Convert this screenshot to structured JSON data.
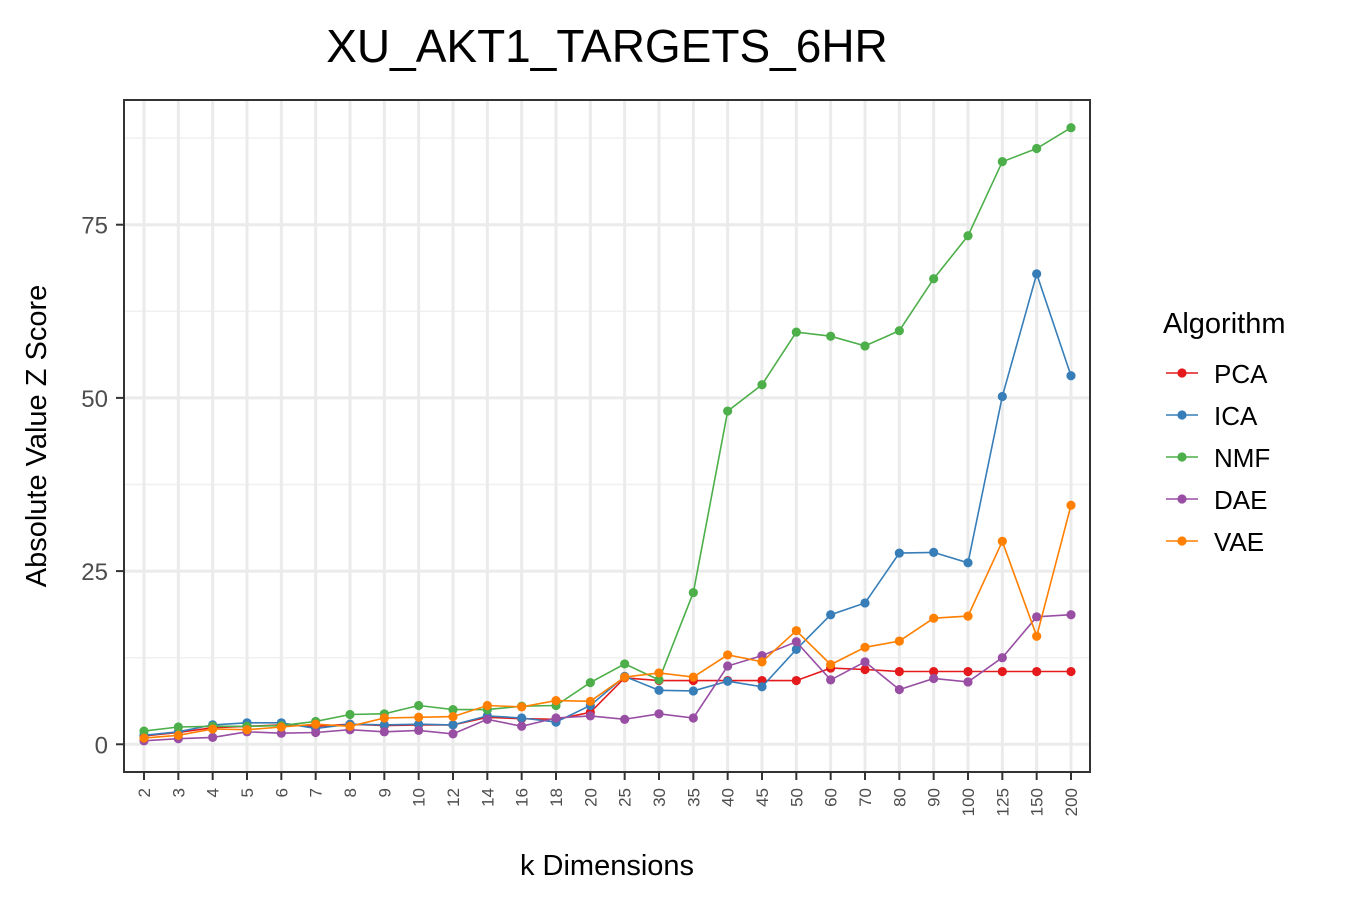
{
  "chart_data": {
    "type": "line",
    "title": "XU_AKT1_TARGETS_6HR",
    "xlabel": "k Dimensions",
    "ylabel": "Absolute Value Z Score",
    "categories": [
      "2",
      "3",
      "4",
      "5",
      "6",
      "7",
      "8",
      "9",
      "10",
      "12",
      "14",
      "16",
      "18",
      "20",
      "25",
      "30",
      "35",
      "40",
      "45",
      "50",
      "60",
      "70",
      "80",
      "90",
      "100",
      "125",
      "150",
      "200"
    ],
    "yticks": [
      0,
      25,
      50,
      75
    ],
    "ylim": [
      -4,
      93
    ],
    "grid": true,
    "legend": {
      "title": "Algorithm",
      "placement": "right"
    },
    "series": [
      {
        "name": "PCA",
        "color": "#e41a1c",
        "values": [
          1.2,
          1.7,
          2.4,
          2.6,
          2.8,
          2.6,
          2.9,
          2.7,
          2.8,
          2.8,
          3.9,
          3.7,
          3.6,
          4.6,
          9.6,
          9.2,
          9.2,
          9.2,
          9.2,
          9.2,
          11.0,
          10.8,
          10.5,
          10.5,
          10.5,
          10.5,
          10.5,
          10.5
        ]
      },
      {
        "name": "ICA",
        "color": "#377eb8",
        "values": [
          1.3,
          1.8,
          2.8,
          3.1,
          3.1,
          2.3,
          2.9,
          2.8,
          2.9,
          2.8,
          4.1,
          3.8,
          3.2,
          5.6,
          9.8,
          7.8,
          7.7,
          9.1,
          8.3,
          13.7,
          18.7,
          20.4,
          27.6,
          27.7,
          26.2,
          50.2,
          67.9,
          53.2
        ]
      },
      {
        "name": "NMF",
        "color": "#4daf4a",
        "values": [
          1.9,
          2.5,
          2.6,
          2.6,
          2.7,
          3.3,
          4.3,
          4.4,
          5.6,
          5.0,
          5.0,
          5.5,
          5.6,
          8.9,
          11.6,
          9.3,
          21.9,
          48.1,
          51.9,
          59.5,
          58.9,
          57.5,
          59.7,
          67.2,
          73.4,
          84.1,
          86.0,
          89.0
        ]
      },
      {
        "name": "DAE",
        "color": "#984ea3",
        "values": [
          0.5,
          0.8,
          1.0,
          1.8,
          1.6,
          1.7,
          2.1,
          1.8,
          2.0,
          1.5,
          3.6,
          2.6,
          3.8,
          4.1,
          3.6,
          4.4,
          3.8,
          11.3,
          12.8,
          14.8,
          9.3,
          11.9,
          7.9,
          9.5,
          9.0,
          12.5,
          18.4,
          18.7
        ]
      },
      {
        "name": "VAE",
        "color": "#ff7f00",
        "values": [
          0.9,
          1.3,
          2.2,
          2.1,
          2.5,
          2.9,
          2.6,
          3.8,
          3.9,
          4.0,
          5.6,
          5.4,
          6.3,
          6.2,
          9.7,
          10.3,
          9.7,
          12.9,
          11.9,
          16.4,
          11.5,
          14.0,
          14.9,
          18.2,
          18.5,
          29.3,
          15.6,
          34.5
        ]
      }
    ]
  }
}
